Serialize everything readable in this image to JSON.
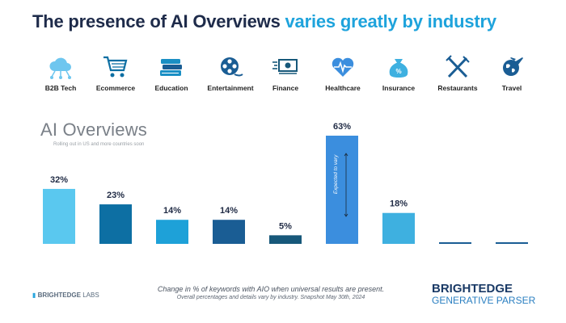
{
  "title": {
    "part1": "The presence of AI Overviews ",
    "part2": "varies greatly by industry"
  },
  "icons": [
    {
      "name": "cloud-network-icon",
      "label": "B2B Tech"
    },
    {
      "name": "shopping-cart-icon",
      "label": "Ecommerce"
    },
    {
      "name": "books-icon",
      "label": "Education"
    },
    {
      "name": "film-reel-icon",
      "label": "Entertainment"
    },
    {
      "name": "money-icon",
      "label": "Finance"
    },
    {
      "name": "heart-pulse-icon",
      "label": "Healthcare"
    },
    {
      "name": "money-bag-icon",
      "label": "Insurance"
    },
    {
      "name": "fork-knife-icon",
      "label": "Restaurants"
    },
    {
      "name": "globe-plane-icon",
      "label": "Travel"
    }
  ],
  "aio": {
    "title": "AI Overviews",
    "subtitle": "Rolling out in US and more countries soon"
  },
  "chart_data": {
    "type": "bar",
    "categories": [
      "B2B Tech",
      "Ecommerce",
      "Education",
      "Entertainment",
      "Finance",
      "Healthcare",
      "Insurance",
      "Restaurants",
      "Travel"
    ],
    "values": [
      32,
      23,
      14,
      14,
      5,
      63,
      18,
      0,
      0
    ],
    "data_labels": [
      "32%",
      "23%",
      "14%",
      "14%",
      "5%",
      "63%",
      "18%",
      "",
      ""
    ],
    "annotations": [
      {
        "category": "Healthcare",
        "text": "Expected to vary"
      }
    ],
    "colors": [
      "#5ac8ef",
      "#0d6fa3",
      "#1ea1d8",
      "#1a5d94",
      "#17587a",
      "#3b8ede",
      "#3eb0e0",
      "#1a5d94",
      "#1a5d94"
    ],
    "ylim": [
      0,
      63
    ],
    "grid": false
  },
  "footer": {
    "logo_main": "BRIGHTEDGE",
    "logo_sub": "LABS",
    "caption_line1": "Change in % of keywords with AIO when universal results are present.",
    "caption_line2": "Overall percentages and details vary by industry. Snapshot May 30th, 2024",
    "brand_line1": "BRIGHTEDGE",
    "brand_line2": "GENERATIVE PARSER"
  }
}
